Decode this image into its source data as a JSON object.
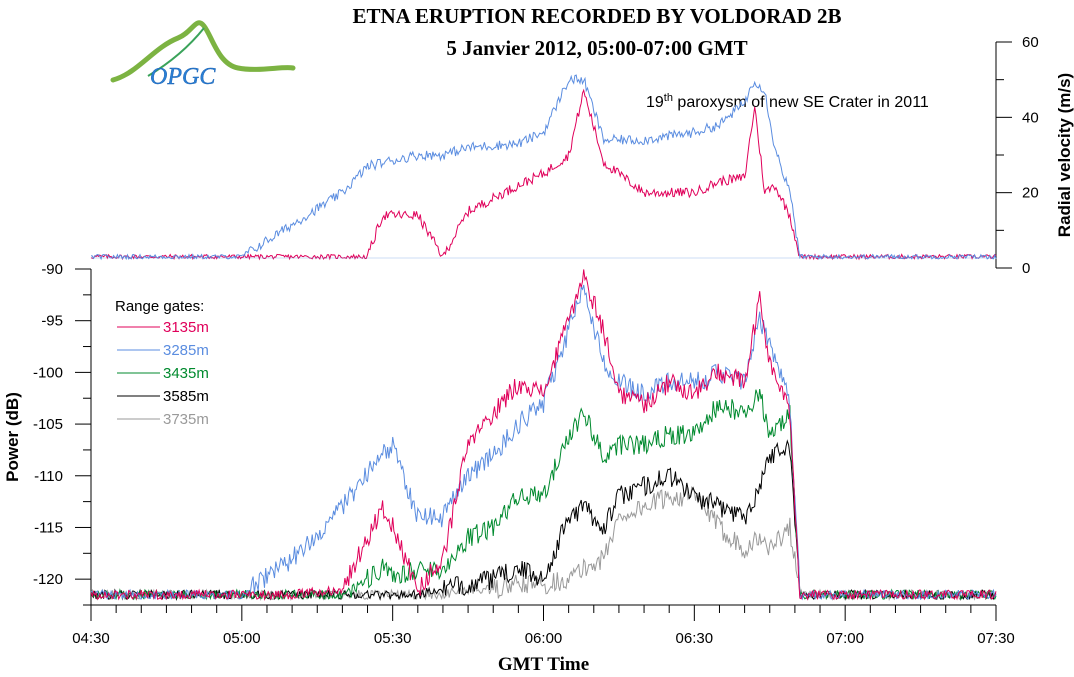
{
  "title_line1": "ETNA ERUPTION RECORDED BY VOLDORAD 2B",
  "title_line2": "5 Janvier 2012, 05:00-07:00 GMT",
  "logo_text": "OPGC",
  "chart_data": [
    {
      "type": "line",
      "panel": "top",
      "ylabel": "Radial velocity (m/s)",
      "ylim": [
        0,
        60
      ],
      "yticks": [
        "0",
        "20",
        "40",
        "60"
      ],
      "annotation": {
        "base": "19",
        "sup": "th",
        "rest": " paroxysm of new SE Crater in 2011"
      },
      "x": [
        "04:30",
        "05:00",
        "05:20",
        "05:25",
        "05:28",
        "05:35",
        "05:40",
        "05:45",
        "05:55",
        "06:00",
        "06:05",
        "06:08",
        "06:12",
        "06:20",
        "06:30",
        "06:35",
        "06:40",
        "06:42",
        "06:44",
        "06:46",
        "06:49",
        "06:51",
        "07:00",
        "07:30"
      ],
      "series": [
        {
          "color": "#e0005a",
          "values": [
            3,
            3,
            3,
            3,
            14,
            14,
            3,
            15,
            22,
            25,
            30,
            47,
            28,
            20,
            20,
            23,
            24,
            43,
            20,
            22,
            14,
            3,
            3,
            3
          ]
        },
        {
          "color": "#5b8de0",
          "values": [
            3,
            3,
            20,
            27,
            28,
            30,
            30,
            32,
            33,
            36,
            50,
            50,
            34,
            34,
            36,
            38,
            44,
            50,
            47,
            32,
            20,
            3,
            3,
            3
          ]
        }
      ]
    },
    {
      "type": "line",
      "panel": "bottom",
      "ylabel": "Power (dB)",
      "xlabel": "GMT Time",
      "ylim": [
        -122.5,
        -90
      ],
      "yticks": [
        "-120",
        "-115",
        "-110",
        "-105",
        "-100",
        "-95",
        "-90"
      ],
      "xticks": [
        "04:30",
        "05:00",
        "05:30",
        "06:00",
        "06:30",
        "07:00",
        "07:30"
      ],
      "legend_title": "Range gates:",
      "x": [
        "04:30",
        "05:00",
        "05:10",
        "05:20",
        "05:28",
        "05:30",
        "05:35",
        "05:40",
        "05:45",
        "05:50",
        "05:55",
        "06:00",
        "06:05",
        "06:08",
        "06:12",
        "06:15",
        "06:20",
        "06:25",
        "06:30",
        "06:35",
        "06:40",
        "06:43",
        "06:45",
        "06:49",
        "06:51",
        "07:00",
        "07:30"
      ],
      "series": [
        {
          "name": "3135m",
          "color": "#e0005a",
          "values": [
            -121.5,
            -121.5,
            -121.5,
            -121,
            -113,
            -115,
            -121,
            -118,
            -107,
            -104,
            -101,
            -102,
            -95,
            -90.5,
            -96,
            -102,
            -103,
            -101,
            -102,
            -100,
            -101,
            -93,
            -99,
            -104,
            -121.5,
            -121.5,
            -121.5
          ]
        },
        {
          "name": "3285m",
          "color": "#5b8de0",
          "values": [
            -121.5,
            -121.5,
            -118,
            -113,
            -108,
            -107,
            -114,
            -114,
            -110,
            -108,
            -105,
            -103,
            -96,
            -92,
            -99,
            -101,
            -102,
            -101,
            -101,
            -100,
            -101,
            -95,
            -97,
            -103,
            -121.5,
            -121.5,
            -121.5
          ]
        },
        {
          "name": "3435m",
          "color": "#008a2e",
          "values": [
            -121.5,
            -121.5,
            -121.5,
            -121.5,
            -119,
            -120,
            -119,
            -119,
            -116,
            -115,
            -112,
            -112,
            -106,
            -104,
            -108,
            -107,
            -107,
            -106,
            -106,
            -103,
            -104,
            -102,
            -106,
            -104,
            -121.5,
            -121.5,
            -121.5
          ]
        },
        {
          "name": "3585m",
          "color": "#000000",
          "values": [
            -121.5,
            -121.5,
            -121.5,
            -121.5,
            -121.5,
            -121.5,
            -121.5,
            -121,
            -120.5,
            -120,
            -119,
            -120,
            -114,
            -113,
            -115,
            -112,
            -111,
            -110,
            -112,
            -113,
            -114,
            -111,
            -108,
            -107,
            -121.5,
            -121.5,
            -121.5
          ]
        },
        {
          "name": "3735m",
          "color": "#9a9a9a",
          "values": [
            -121.5,
            -121.5,
            -121.5,
            -121.5,
            -121.5,
            -121.5,
            -121.5,
            -121.5,
            -121,
            -121,
            -120.5,
            -120.5,
            -120,
            -119,
            -118,
            -114,
            -113,
            -112,
            -112,
            -115,
            -117,
            -116,
            -117,
            -115,
            -121.5,
            -121.5,
            -121.5
          ]
        }
      ]
    }
  ]
}
